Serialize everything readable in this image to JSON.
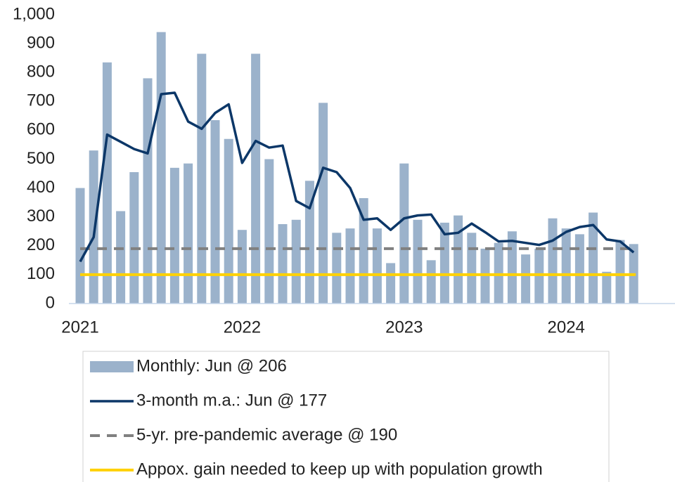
{
  "chart_data": {
    "type": "bar",
    "categories": [
      "2021",
      null,
      null,
      null,
      null,
      null,
      null,
      null,
      null,
      null,
      null,
      null,
      "2022",
      null,
      null,
      null,
      null,
      null,
      null,
      null,
      null,
      null,
      null,
      null,
      "2023",
      null,
      null,
      null,
      null,
      null,
      null,
      null,
      null,
      null,
      null,
      null,
      "2024",
      null,
      null,
      null,
      null,
      null
    ],
    "ylim": [
      0,
      1000
    ],
    "yticks": [
      0,
      100,
      200,
      300,
      400,
      500,
      600,
      700,
      800,
      900,
      {
        "value": 1000,
        "label": "1,000"
      }
    ],
    "series": [
      {
        "name": "Monthly: Jun @ 206",
        "type": "bar",
        "color": "#9bb2cb",
        "values": [
          400,
          530,
          835,
          320,
          455,
          780,
          940,
          470,
          485,
          865,
          635,
          570,
          255,
          865,
          500,
          275,
          290,
          425,
          695,
          245,
          260,
          365,
          260,
          140,
          485,
          290,
          150,
          280,
          305,
          245,
          190,
          210,
          250,
          170,
          190,
          295,
          260,
          240,
          315,
          110,
          220,
          206
        ]
      },
      {
        "name": "3-month m.a.: Jun @ 177",
        "type": "line",
        "color": "#0c3768",
        "values": [
          145,
          230,
          585,
          560,
          535,
          520,
          725,
          730,
          630,
          605,
          660,
          690,
          487,
          563,
          540,
          547,
          355,
          330,
          470,
          455,
          400,
          290,
          295,
          255,
          295,
          305,
          308,
          240,
          245,
          277,
          247,
          215,
          217,
          210,
          203,
          218,
          248,
          265,
          272,
          222,
          215,
          177
        ]
      },
      {
        "name": "5-yr. pre-pandemic average @ 190",
        "type": "hline",
        "dashed": true,
        "color": "#808080",
        "value": 190
      },
      {
        "name": "Appox. gain needed to keep up with population growth",
        "type": "hline",
        "dashed": false,
        "color": "#ffd100",
        "value": 100
      }
    ]
  }
}
